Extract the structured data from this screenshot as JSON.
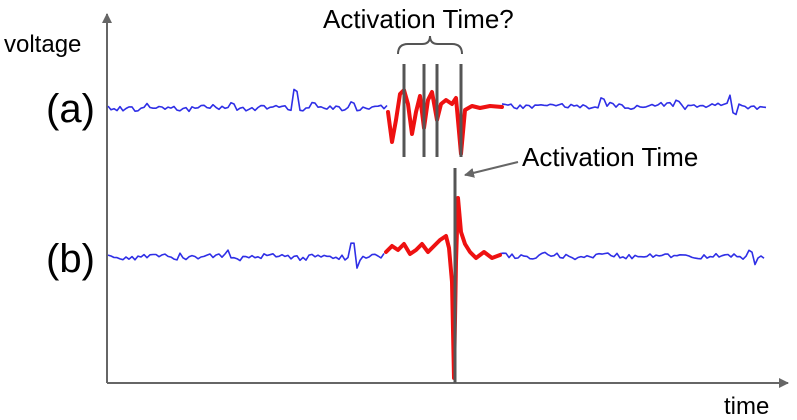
{
  "axes": {
    "y_label": "voltage",
    "x_label": "time"
  },
  "traces": [
    {
      "label": "(a)",
      "name": "trace-a"
    },
    {
      "label": "(b)",
      "name": "trace-b"
    }
  ],
  "annotations": {
    "ambiguous": "Activation Time?",
    "clear": "Activation Time"
  },
  "colors": {
    "baseline": "#2f2fe6",
    "activation": "#ee1111",
    "marker": "#555555",
    "axis": "#666666"
  }
}
